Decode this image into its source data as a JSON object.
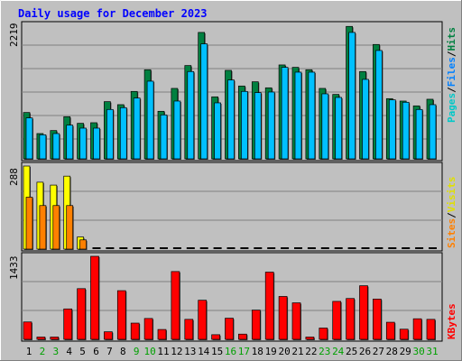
{
  "chart_data": [
    {
      "type": "bar",
      "title": "Daily usage for December 2023",
      "ymax_label": "2219",
      "ylim": [
        0,
        2219
      ],
      "categories": [
        "1",
        "2",
        "3",
        "4",
        "5",
        "6",
        "7",
        "8",
        "9",
        "10",
        "11",
        "12",
        "13",
        "14",
        "15",
        "16",
        "17",
        "18",
        "19",
        "20",
        "21",
        "22",
        "23",
        "24",
        "25",
        "26",
        "27",
        "28",
        "29",
        "30",
        "31"
      ],
      "weekend_days": [
        "2",
        "3",
        "9",
        "10",
        "16",
        "17",
        "23",
        "24",
        "30",
        "31"
      ],
      "legend": [
        "Pages",
        "/",
        "Files",
        "/",
        "Hits"
      ],
      "series": [
        {
          "name": "Hits",
          "values": [
            770,
            420,
            470,
            700,
            590,
            600,
            950,
            900,
            1120,
            1480,
            790,
            1170,
            1550,
            2100,
            1030,
            1470,
            1210,
            1280,
            1180,
            1560,
            1520,
            1480,
            1170,
            1070,
            2200,
            1450,
            1900,
            1000,
            960,
            880,
            990
          ]
        },
        {
          "name": "Files",
          "values": [
            680,
            400,
            420,
            560,
            510,
            510,
            820,
            850,
            1010,
            1290,
            730,
            960,
            1450,
            1910,
            930,
            1310,
            1120,
            1100,
            1110,
            1520,
            1440,
            1440,
            1080,
            1020,
            2100,
            1320,
            1800,
            980,
            940,
            820,
            900
          ]
        },
        {
          "name": "Pages",
          "values": [
            0,
            0,
            0,
            0,
            0,
            0,
            0,
            0,
            0,
            0,
            0,
            0,
            0,
            0,
            0,
            0,
            0,
            0,
            0,
            0,
            0,
            0,
            0,
            0,
            0,
            0,
            0,
            0,
            0,
            0,
            0
          ]
        }
      ],
      "colors": {
        "Hits": "#008040",
        "Files": "#00c0ff",
        "Pages": "#00ffff"
      }
    },
    {
      "type": "bar",
      "ymax_label": "288",
      "ylim": [
        0,
        288
      ],
      "legend": [
        "Sites",
        "/",
        "Visits"
      ],
      "series": [
        {
          "name": "Visits",
          "values": [
            288,
            232,
            222,
            253,
            42,
            0,
            0,
            0,
            0,
            0,
            0,
            0,
            0,
            0,
            0,
            0,
            0,
            0,
            0,
            0,
            0,
            0,
            0,
            0,
            0,
            0,
            0,
            0,
            0,
            0,
            0
          ]
        },
        {
          "name": "Sites",
          "values": [
            180,
            151,
            151,
            151,
            32,
            0,
            0,
            0,
            0,
            0,
            0,
            0,
            0,
            0,
            0,
            0,
            0,
            0,
            0,
            0,
            0,
            0,
            0,
            0,
            0,
            0,
            0,
            0,
            0,
            0,
            0
          ]
        }
      ],
      "colors": {
        "Visits": "#ffff00",
        "Sites": "#ff8000"
      }
    },
    {
      "type": "bar",
      "ymax_label": "1433",
      "ylim": [
        0,
        1433
      ],
      "legend": [
        "KBytes"
      ],
      "series": [
        {
          "name": "KBytes",
          "values": [
            300,
            40,
            40,
            525,
            875,
            1433,
            130,
            840,
            280,
            360,
            170,
            1170,
            345,
            675,
            80,
            365,
            90,
            505,
            1160,
            740,
            630,
            40,
            195,
            655,
            705,
            925,
            695,
            295,
            175,
            355,
            345
          ]
        }
      ],
      "colors": {
        "KBytes": "#ff0000"
      }
    }
  ]
}
